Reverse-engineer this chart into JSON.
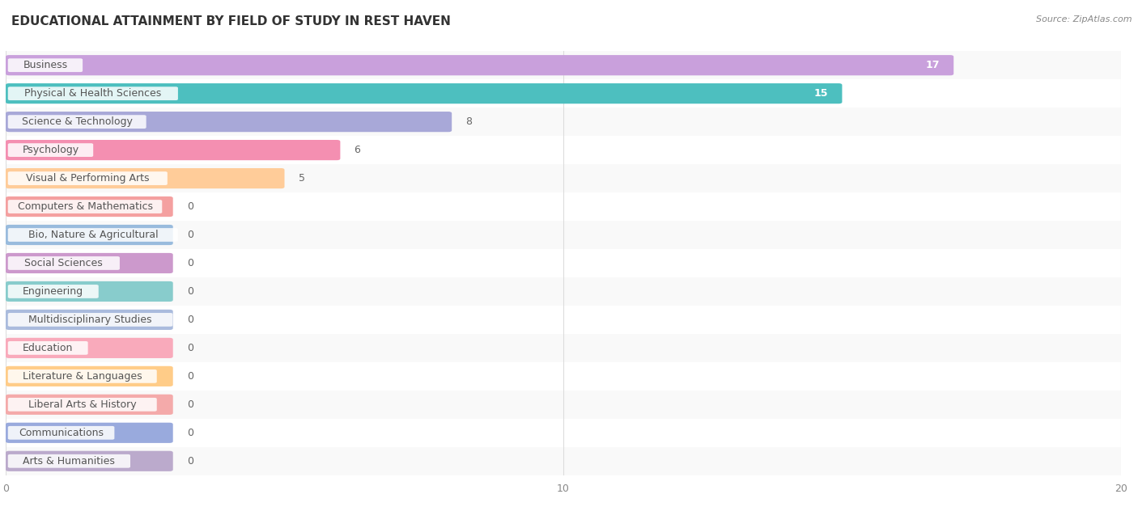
{
  "title": "EDUCATIONAL ATTAINMENT BY FIELD OF STUDY IN REST HAVEN",
  "source": "Source: ZipAtlas.com",
  "categories": [
    "Business",
    "Physical & Health Sciences",
    "Science & Technology",
    "Psychology",
    "Visual & Performing Arts",
    "Computers & Mathematics",
    "Bio, Nature & Agricultural",
    "Social Sciences",
    "Engineering",
    "Multidisciplinary Studies",
    "Education",
    "Literature & Languages",
    "Liberal Arts & History",
    "Communications",
    "Arts & Humanities"
  ],
  "values": [
    17,
    15,
    8,
    6,
    5,
    0,
    0,
    0,
    0,
    0,
    0,
    0,
    0,
    0,
    0
  ],
  "bar_colors": [
    "#c9a0dc",
    "#4dbfbf",
    "#a8a8d8",
    "#f48fb1",
    "#ffcc99",
    "#f4a0a0",
    "#99bbdd",
    "#cc99cc",
    "#88cccc",
    "#aabbdd",
    "#f9aabb",
    "#ffcc88",
    "#f4aaaa",
    "#99aadd",
    "#bbaacc"
  ],
  "row_bg_colors": [
    "#f9f9f9",
    "#ffffff"
  ],
  "xlim": [
    0,
    20
  ],
  "xticks": [
    0,
    10,
    20
  ],
  "zero_bar_width": 3.0,
  "title_fontsize": 11,
  "label_fontsize": 9,
  "value_fontsize": 9,
  "background_color": "#ffffff"
}
